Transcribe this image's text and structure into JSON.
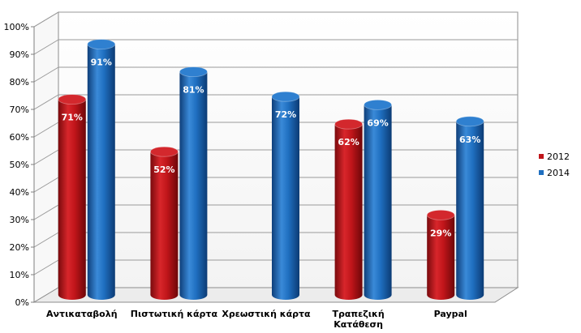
{
  "chart_data": {
    "type": "bar",
    "categories": [
      "Αντικαταβολή",
      "Πιστωτική κάρτα",
      "Χρεωστική κάρτα",
      "Τραπεζική Κατάθεση",
      "Paypal"
    ],
    "series": [
      {
        "name": "2012",
        "values": [
          71,
          52,
          null,
          62,
          29
        ],
        "color": "#c0151a"
      },
      {
        "name": "2014",
        "values": [
          91,
          81,
          72,
          69,
          63
        ],
        "color": "#1f6fc0"
      }
    ],
    "data_labels_2012": [
      "71%",
      "52%",
      "",
      "62%",
      "29%"
    ],
    "data_labels_2014": [
      "91%",
      "81%",
      "72%",
      "69%",
      "63%"
    ],
    "ylim": [
      0,
      100
    ],
    "y_ticks": [
      "0%",
      "10%",
      "20%",
      "30%",
      "40%",
      "50%",
      "60%",
      "70%",
      "80%",
      "90%",
      "100%"
    ],
    "grid": true,
    "legend_position": "right",
    "style": "3d-cylinder"
  }
}
